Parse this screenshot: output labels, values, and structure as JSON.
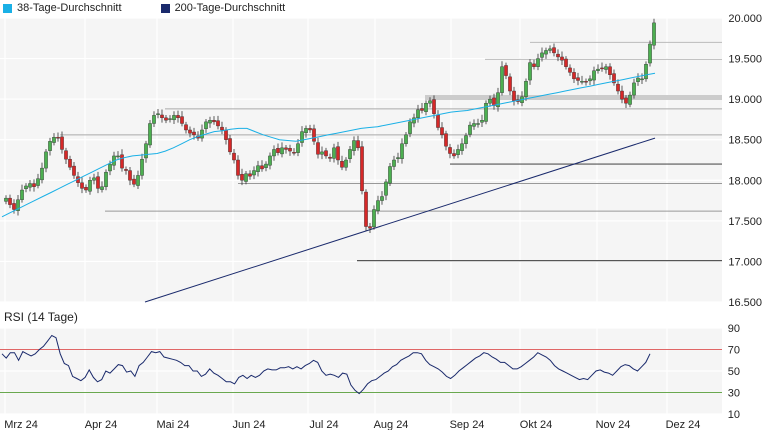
{
  "legend": {
    "ma38": {
      "label": "38-Tage-Durchschnitt",
      "color": "#1ab0e6"
    },
    "ma200": {
      "label": "200-Tage-Durchschnitt",
      "color": "#1a2a6c"
    }
  },
  "rsi": {
    "title": "RSI (14 Tage)",
    "color": "#1a2a6c"
  },
  "chart_data": [
    {
      "type": "candlestick",
      "ylim": [
        16500,
        20000
      ],
      "yticks": [
        "20.000",
        "19.500",
        "19.000",
        "18.500",
        "18.000",
        "17.500",
        "17.000",
        "16.500"
      ],
      "ytick_values": [
        20000,
        19500,
        19000,
        18500,
        18000,
        17500,
        17000,
        16500
      ],
      "xticks": [
        "Mrz 24",
        "Apr 24",
        "Mai 24",
        "Jun 24",
        "Jul 24",
        "Aug 24",
        "Sep 24",
        "Okt 24",
        "Nov 24",
        "Dez 24"
      ],
      "grid": true,
      "candles": {
        "close": [
          17780,
          17700,
          17640,
          17760,
          17880,
          17930,
          17960,
          17920,
          18020,
          18150,
          18350,
          18480,
          18530,
          18520,
          18380,
          18260,
          18160,
          18060,
          17970,
          17900,
          17880,
          18000,
          18030,
          17900,
          17920,
          18100,
          18200,
          18300,
          18300,
          18150,
          18120,
          18000,
          17950,
          18060,
          18260,
          18450,
          18700,
          18800,
          18820,
          18770,
          18740,
          18760,
          18800,
          18770,
          18700,
          18620,
          18580,
          18560,
          18520,
          18620,
          18720,
          18740,
          18720,
          18670,
          18620,
          18500,
          18350,
          18250,
          18060,
          18000,
          18080,
          18050,
          18120,
          18180,
          18140,
          18200,
          18300,
          18380,
          18340,
          18400,
          18380,
          18360,
          18340,
          18450,
          18600,
          18640,
          18620,
          18480,
          18320,
          18350,
          18300,
          18270,
          18400,
          18250,
          18160,
          18250,
          18380,
          18490,
          18400,
          17870,
          17430,
          17410,
          17640,
          17750,
          17800,
          17980,
          18170,
          18250,
          18280,
          18450,
          18560,
          18720,
          18770,
          18870,
          18860,
          18950,
          18980,
          18820,
          18650,
          18560,
          18420,
          18330,
          18300,
          18380,
          18450,
          18550,
          18680,
          18700,
          18700,
          18740,
          18950,
          19000,
          18920,
          19080,
          19400,
          19290,
          19100,
          18980,
          18970,
          19030,
          19220,
          19450,
          19400,
          19500,
          19570,
          19600,
          19620,
          19570,
          19520,
          19480,
          19400,
          19330,
          19250,
          19230,
          19220,
          19210,
          19250,
          19350,
          19370,
          19380,
          19400,
          19300,
          19200,
          19100,
          19000,
          18950,
          19050,
          19200,
          19260,
          19250,
          19430,
          19680,
          19940
        ],
        "pattern": "pseudo-OHLC generated from closes"
      },
      "ma38": [
        17550,
        17600,
        17650,
        17700,
        17750,
        17800,
        17850,
        17900,
        17950,
        18000,
        18050,
        18100,
        18150,
        18200,
        18250,
        18280,
        18300,
        18310,
        18320,
        18330,
        18360,
        18400,
        18450,
        18500,
        18540,
        18570,
        18600,
        18610,
        18630,
        18640,
        18640,
        18600,
        18560,
        18530,
        18500,
        18490,
        18480,
        18500,
        18520,
        18540,
        18560,
        18580,
        18600,
        18620,
        18640,
        18650,
        18660,
        18680,
        18700,
        18720,
        18740,
        18760,
        18780,
        18800,
        18820,
        18840,
        18850,
        18860,
        18880,
        18900,
        18920,
        18940,
        18960,
        18980,
        19000,
        19020,
        19040,
        19060,
        19080,
        19100,
        19120,
        19140,
        19160,
        19180,
        19200,
        19220,
        19240,
        19260,
        19280,
        19300,
        19320
      ],
      "ma200_start": [
        0,
        16500
      ],
      "ma200_end": [
        1,
        18520
      ]
    },
    {
      "type": "line",
      "title": "RSI (14 Tage)",
      "ylim": [
        10,
        90
      ],
      "yticks": [
        "90",
        "70",
        "50",
        "30",
        "10"
      ],
      "ytick_values": [
        90,
        70,
        50,
        30,
        10
      ],
      "upper_band": 70,
      "lower_band": 30,
      "values": [
        66,
        62,
        67,
        67,
        60,
        68,
        66,
        64,
        66,
        70,
        73,
        78,
        83,
        81,
        66,
        57,
        55,
        45,
        43,
        41,
        44,
        51,
        44,
        40,
        42,
        50,
        48,
        52,
        56,
        55,
        49,
        50,
        45,
        55,
        58,
        63,
        68,
        67,
        68,
        63,
        62,
        61,
        60,
        58,
        55,
        55,
        50,
        50,
        45,
        47,
        52,
        48,
        46,
        43,
        40,
        40,
        38,
        44,
        46,
        43,
        46,
        44,
        46,
        50,
        52,
        51,
        51,
        53,
        53,
        54,
        52,
        54,
        52,
        55,
        57,
        60,
        58,
        50,
        46,
        47,
        46,
        44,
        48,
        47,
        37,
        32,
        29,
        33,
        38,
        41,
        42,
        45,
        48,
        50,
        54,
        56,
        60,
        62,
        64,
        67,
        67,
        66,
        60,
        56,
        54,
        52,
        49,
        45,
        43,
        46,
        50,
        53,
        56,
        59,
        62,
        64,
        67,
        66,
        63,
        61,
        58,
        58,
        55,
        52,
        52,
        54,
        57,
        60,
        63,
        67,
        65,
        63,
        60,
        55,
        52,
        50,
        48,
        46,
        44,
        42,
        43,
        42,
        46,
        50,
        51,
        49,
        48,
        46,
        50,
        54,
        56,
        55,
        52,
        50,
        54,
        58,
        66
      ]
    }
  ]
}
